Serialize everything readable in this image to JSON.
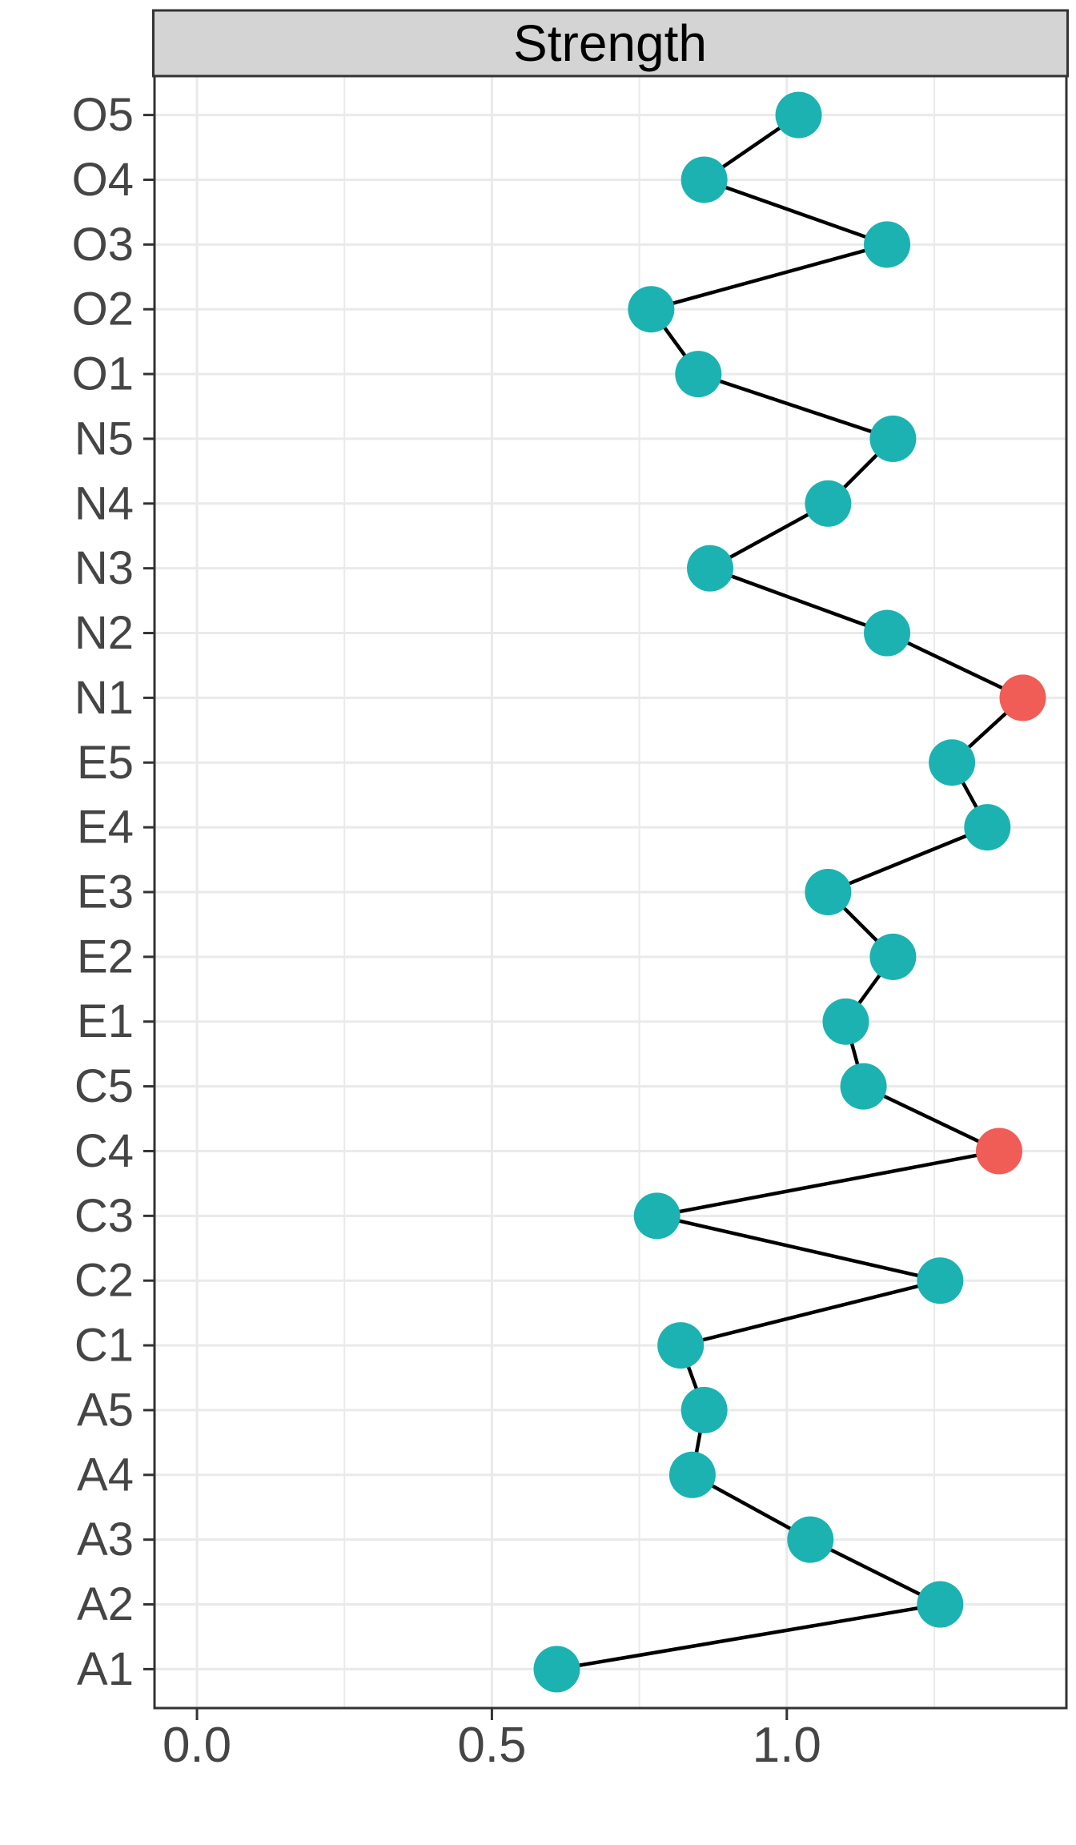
{
  "chart_data": {
    "type": "scatter",
    "title": "Strength",
    "orientation": "horizontal",
    "xlabel": "",
    "ylabel": "",
    "categories": [
      "O5",
      "O4",
      "O3",
      "O2",
      "O1",
      "N5",
      "N4",
      "N3",
      "N2",
      "N1",
      "E5",
      "E4",
      "E3",
      "E2",
      "E1",
      "C5",
      "C4",
      "C3",
      "C2",
      "C1",
      "A5",
      "A4",
      "A3",
      "A2",
      "A1"
    ],
    "values": [
      1.02,
      0.86,
      1.17,
      0.77,
      0.85,
      1.18,
      1.07,
      0.87,
      1.17,
      1.4,
      1.28,
      1.34,
      1.07,
      1.18,
      1.1,
      1.13,
      1.36,
      0.78,
      1.26,
      0.82,
      0.86,
      0.84,
      1.04,
      1.26,
      0.61
    ],
    "highlighted_categories": [
      "N1",
      "C4"
    ],
    "connected_line": true,
    "x_ticks": [
      0.0,
      0.5,
      1.0
    ],
    "x_tick_labels": [
      "0.0",
      "0.5",
      "1.0"
    ],
    "x_minor_gridlines": [
      0.25,
      0.75,
      1.25
    ],
    "xlim": [
      -0.072,
      1.474
    ],
    "grid": true,
    "legend_position": "none",
    "colors": {
      "point": "#1CB2B2",
      "highlight": "#F05C56",
      "line": "#000000",
      "grid": "#EAEAEA",
      "strip_bg": "#D4D4D4",
      "border": "#333333",
      "tick_label": "#454545",
      "panel_bg": "#FFFFFF"
    }
  }
}
